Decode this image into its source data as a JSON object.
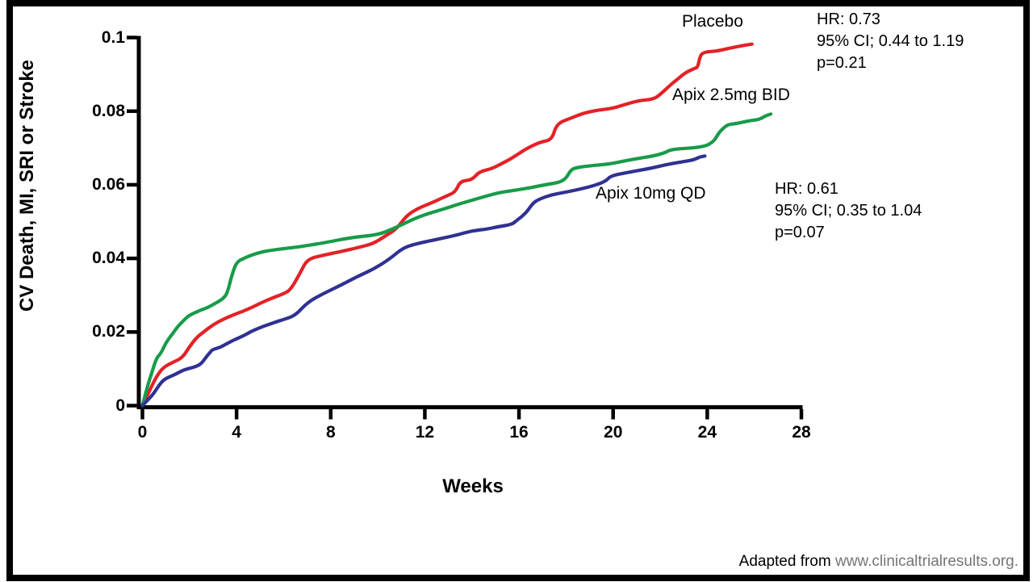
{
  "figure": {
    "y_axis_title": "CV Death, MI, SRI or Stroke",
    "x_axis_title": "Weeks",
    "footer": {
      "prefix": "Adapted from ",
      "link": "www.clinicaltrialresults.org."
    }
  },
  "curve_labels": {
    "placebo": "Placebo",
    "apix25": "Apix 2.5mg BID",
    "apix10": "Apix 10mg QD"
  },
  "annotations": {
    "placebo_hr": {
      "line1": "HR: 0.73",
      "line2": "95% CI; 0.44 to 1.19",
      "line3": "p=0.21"
    },
    "apix10_hr": {
      "line1": "HR: 0.61",
      "line2": "95% CI; 0.35 to 1.04",
      "line3": "p=0.07"
    }
  },
  "colors": {
    "axis": "#000000",
    "frame": "#000000",
    "placebo": "#e32227",
    "apix25": "#189b4a",
    "apix10": "#2f3192",
    "footer_link": "#757575"
  },
  "chart_data": {
    "type": "line",
    "title": "",
    "xlabel": "Weeks",
    "ylabel": "CV Death, MI, SRI or Stroke",
    "xlim": [
      0,
      28
    ],
    "ylim": [
      0,
      0.1
    ],
    "x_ticks": [
      0,
      4,
      8,
      12,
      16,
      20,
      24,
      28
    ],
    "x_tick_labels": [
      "0",
      "4",
      "8",
      "12",
      "16",
      "20",
      "24",
      "28"
    ],
    "y_ticks": [
      0,
      0.02,
      0.04,
      0.06,
      0.08,
      0.1
    ],
    "y_tick_labels": [
      "0",
      "0.02",
      "0.04",
      "0.06",
      "0.08",
      "0.1"
    ],
    "grid": false,
    "legend_position": "inline-labels",
    "series": [
      {
        "name": "Placebo",
        "color": "#e32227",
        "points": [
          [
            0,
            0
          ],
          [
            0.3,
            0.004
          ],
          [
            0.6,
            0.008
          ],
          [
            0.9,
            0.0105
          ],
          [
            1.3,
            0.0118
          ],
          [
            1.7,
            0.013
          ],
          [
            2.0,
            0.016
          ],
          [
            2.3,
            0.0185
          ],
          [
            2.6,
            0.02
          ],
          [
            3.0,
            0.022
          ],
          [
            3.5,
            0.0237
          ],
          [
            4.0,
            0.025
          ],
          [
            4.5,
            0.0262
          ],
          [
            5.0,
            0.0278
          ],
          [
            5.5,
            0.0292
          ],
          [
            6.0,
            0.0304
          ],
          [
            6.3,
            0.0315
          ],
          [
            6.7,
            0.036
          ],
          [
            7.0,
            0.0398
          ],
          [
            7.7,
            0.0409
          ],
          [
            8.4,
            0.0418
          ],
          [
            9.2,
            0.043
          ],
          [
            9.8,
            0.044
          ],
          [
            10.3,
            0.046
          ],
          [
            10.8,
            0.048
          ],
          [
            11.2,
            0.0515
          ],
          [
            11.7,
            0.0536
          ],
          [
            12.3,
            0.0551
          ],
          [
            12.9,
            0.0569
          ],
          [
            13.3,
            0.058
          ],
          [
            13.5,
            0.061
          ],
          [
            14.0,
            0.0613
          ],
          [
            14.3,
            0.0635
          ],
          [
            14.8,
            0.0643
          ],
          [
            15.2,
            0.0655
          ],
          [
            15.7,
            0.0672
          ],
          [
            16.3,
            0.0698
          ],
          [
            16.9,
            0.0716
          ],
          [
            17.4,
            0.0722
          ],
          [
            17.6,
            0.0766
          ],
          [
            18.2,
            0.0781
          ],
          [
            18.8,
            0.0796
          ],
          [
            19.4,
            0.0803
          ],
          [
            20.0,
            0.0808
          ],
          [
            20.5,
            0.0818
          ],
          [
            21.1,
            0.0829
          ],
          [
            21.7,
            0.0832
          ],
          [
            22.0,
            0.0845
          ],
          [
            22.5,
            0.0875
          ],
          [
            22.8,
            0.089
          ],
          [
            23.1,
            0.0906
          ],
          [
            23.5,
            0.0917
          ],
          [
            23.6,
            0.092
          ],
          [
            23.7,
            0.0952
          ],
          [
            23.9,
            0.0961
          ],
          [
            24.4,
            0.0963
          ],
          [
            25.0,
            0.0972
          ],
          [
            25.5,
            0.0978
          ],
          [
            25.9,
            0.0982
          ]
        ]
      },
      {
        "name": "Apix 2.5mg BID",
        "color": "#189b4a",
        "points": [
          [
            0,
            0
          ],
          [
            0.2,
            0.005
          ],
          [
            0.4,
            0.009
          ],
          [
            0.6,
            0.013
          ],
          [
            0.8,
            0.0143
          ],
          [
            1.0,
            0.0172
          ],
          [
            1.3,
            0.0197
          ],
          [
            1.5,
            0.0215
          ],
          [
            1.7,
            0.0228
          ],
          [
            1.9,
            0.0241
          ],
          [
            2.1,
            0.0249
          ],
          [
            2.5,
            0.026
          ],
          [
            2.8,
            0.0267
          ],
          [
            3.1,
            0.0278
          ],
          [
            3.4,
            0.0289
          ],
          [
            3.6,
            0.0304
          ],
          [
            3.8,
            0.0355
          ],
          [
            4.0,
            0.039
          ],
          [
            4.3,
            0.04
          ],
          [
            4.8,
            0.0413
          ],
          [
            5.4,
            0.0422
          ],
          [
            6.5,
            0.043
          ],
          [
            7.0,
            0.0435
          ],
          [
            7.7,
            0.0442
          ],
          [
            8.9,
            0.0457
          ],
          [
            10.0,
            0.0464
          ],
          [
            10.6,
            0.0479
          ],
          [
            11.1,
            0.0494
          ],
          [
            11.7,
            0.0512
          ],
          [
            12.3,
            0.0525
          ],
          [
            12.9,
            0.0536
          ],
          [
            13.4,
            0.0547
          ],
          [
            14.0,
            0.0558
          ],
          [
            14.6,
            0.0569
          ],
          [
            15.1,
            0.0578
          ],
          [
            15.7,
            0.0584
          ],
          [
            16.5,
            0.0592
          ],
          [
            17.1,
            0.06
          ],
          [
            17.7,
            0.0606
          ],
          [
            18.0,
            0.0617
          ],
          [
            18.2,
            0.064
          ],
          [
            18.4,
            0.0646
          ],
          [
            18.8,
            0.065
          ],
          [
            19.4,
            0.0654
          ],
          [
            19.9,
            0.0657
          ],
          [
            20.5,
            0.0665
          ],
          [
            21.1,
            0.0672
          ],
          [
            21.7,
            0.0678
          ],
          [
            22.2,
            0.0687
          ],
          [
            22.4,
            0.0694
          ],
          [
            22.8,
            0.0698
          ],
          [
            23.4,
            0.07
          ],
          [
            23.9,
            0.0705
          ],
          [
            24.1,
            0.0711
          ],
          [
            24.3,
            0.072
          ],
          [
            24.5,
            0.0742
          ],
          [
            24.7,
            0.0755
          ],
          [
            24.9,
            0.0764
          ],
          [
            25.2,
            0.0766
          ],
          [
            25.5,
            0.077
          ],
          [
            25.9,
            0.0775
          ],
          [
            26.2,
            0.0777
          ],
          [
            26.5,
            0.0788
          ],
          [
            26.7,
            0.0792
          ]
        ]
      },
      {
        "name": "Apix 10mg QD",
        "color": "#2f3192",
        "points": [
          [
            0,
            0
          ],
          [
            0.3,
            0.002
          ],
          [
            0.5,
            0.0035
          ],
          [
            0.7,
            0.0055
          ],
          [
            0.9,
            0.007
          ],
          [
            1.1,
            0.0077
          ],
          [
            1.4,
            0.0085
          ],
          [
            1.6,
            0.0092
          ],
          [
            1.8,
            0.0098
          ],
          [
            2.1,
            0.0103
          ],
          [
            2.3,
            0.0107
          ],
          [
            2.5,
            0.0114
          ],
          [
            2.7,
            0.0131
          ],
          [
            2.9,
            0.0147
          ],
          [
            3.0,
            0.0153
          ],
          [
            3.3,
            0.0158
          ],
          [
            3.6,
            0.0169
          ],
          [
            3.9,
            0.0179
          ],
          [
            4.3,
            0.019
          ],
          [
            4.6,
            0.0201
          ],
          [
            5.0,
            0.0212
          ],
          [
            5.3,
            0.0219
          ],
          [
            5.7,
            0.0228
          ],
          [
            6.0,
            0.0234
          ],
          [
            6.5,
            0.0245
          ],
          [
            7.0,
            0.028
          ],
          [
            7.7,
            0.0305
          ],
          [
            8.4,
            0.0326
          ],
          [
            9.1,
            0.035
          ],
          [
            9.8,
            0.037
          ],
          [
            10.5,
            0.0398
          ],
          [
            11.1,
            0.043
          ],
          [
            11.8,
            0.0442
          ],
          [
            12.4,
            0.045
          ],
          [
            12.9,
            0.0457
          ],
          [
            13.4,
            0.0464
          ],
          [
            14.0,
            0.0475
          ],
          [
            14.6,
            0.0479
          ],
          [
            15.1,
            0.0486
          ],
          [
            15.7,
            0.0492
          ],
          [
            15.9,
            0.0503
          ],
          [
            16.3,
            0.0523
          ],
          [
            16.6,
            0.0551
          ],
          [
            16.9,
            0.0562
          ],
          [
            17.4,
            0.0573
          ],
          [
            18.0,
            0.058
          ],
          [
            18.8,
            0.0591
          ],
          [
            19.4,
            0.0602
          ],
          [
            19.7,
            0.0611
          ],
          [
            19.9,
            0.0624
          ],
          [
            20.5,
            0.0632
          ],
          [
            21.1,
            0.0639
          ],
          [
            21.7,
            0.0646
          ],
          [
            22.2,
            0.0654
          ],
          [
            22.8,
            0.0661
          ],
          [
            23.4,
            0.0667
          ],
          [
            23.7,
            0.0676
          ],
          [
            23.9,
            0.0678
          ]
        ]
      }
    ]
  }
}
